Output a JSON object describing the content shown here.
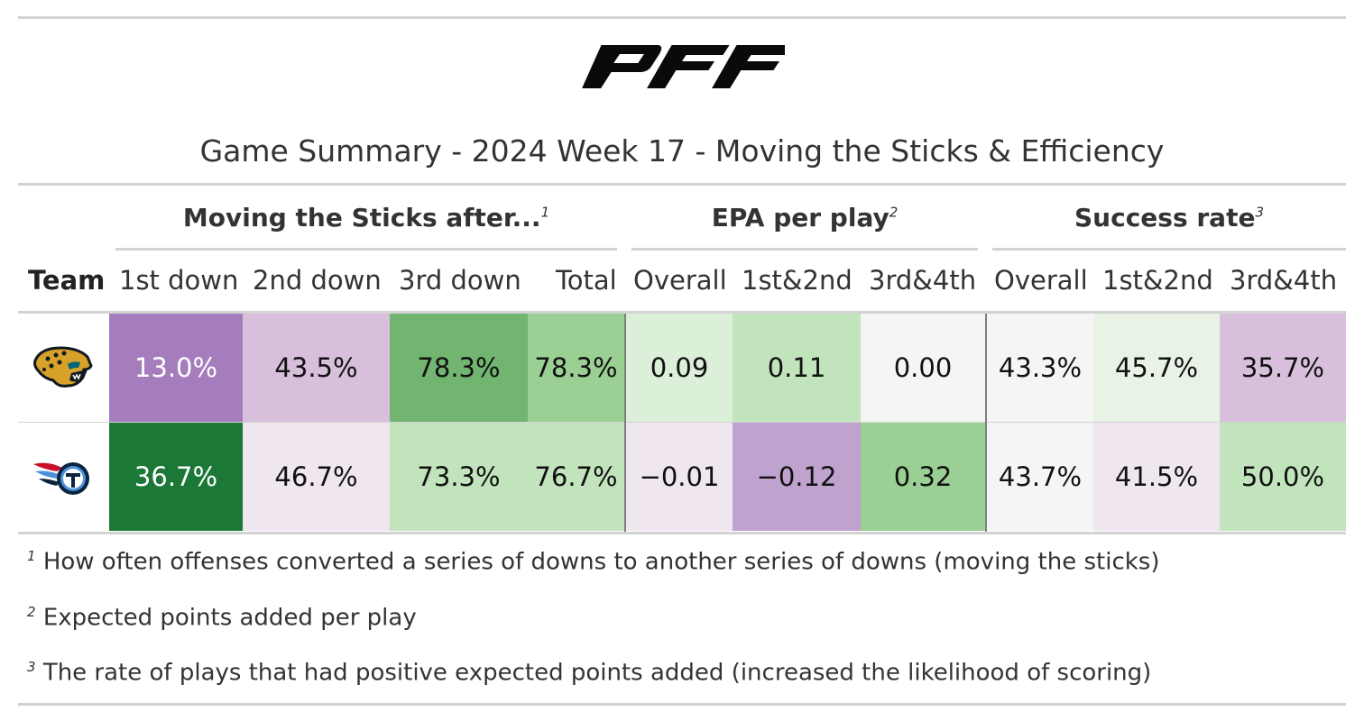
{
  "logo_text": "PFF",
  "title": "Game Summary - 2024 Week 17 - Moving the Sticks & Efficiency",
  "spanners": [
    {
      "label": "Moving the Sticks after...",
      "mark": "1"
    },
    {
      "label": "EPA per play",
      "mark": "2"
    },
    {
      "label": "Success rate",
      "mark": "3"
    }
  ],
  "columns": [
    "Team",
    "1st down",
    "2nd down",
    "3rd down",
    "Total",
    "Overall",
    "1st&2nd",
    "3rd&4th",
    "Overall",
    "1st&2nd",
    "3rd&4th"
  ],
  "rows": [
    {
      "team_icon": "jaguars-logo-icon",
      "cells": [
        {
          "text": "13.0%",
          "bg": "#a57dbd",
          "fg": "light"
        },
        {
          "text": "43.5%",
          "bg": "#d8c0dc",
          "fg": "dark"
        },
        {
          "text": "78.3%",
          "bg": "#71b571",
          "fg": "dark"
        },
        {
          "text": "78.3%",
          "bg": "#9bd094",
          "fg": "dark"
        },
        {
          "text": "0.09",
          "bg": "#dcefd8",
          "fg": "dark"
        },
        {
          "text": "0.11",
          "bg": "#c2e4bc",
          "fg": "dark"
        },
        {
          "text": "0.00",
          "bg": "#f5f5f5",
          "fg": "dark"
        },
        {
          "text": "43.3%",
          "bg": "#f5f5f5",
          "fg": "dark"
        },
        {
          "text": "45.7%",
          "bg": "#e8f3e6",
          "fg": "dark"
        },
        {
          "text": "35.7%",
          "bg": "#d8c0dc",
          "fg": "dark"
        }
      ]
    },
    {
      "team_icon": "titans-logo-icon",
      "cells": [
        {
          "text": "36.7%",
          "bg": "#1b7837",
          "fg": "light"
        },
        {
          "text": "46.7%",
          "bg": "#efe6ef",
          "fg": "dark"
        },
        {
          "text": "73.3%",
          "bg": "#c2e4bc",
          "fg": "dark"
        },
        {
          "text": "76.7%",
          "bg": "#c2e4bc",
          "fg": "dark"
        },
        {
          "text": "−0.01",
          "bg": "#efe6ef",
          "fg": "dark"
        },
        {
          "text": "−0.12",
          "bg": "#c0a2cf",
          "fg": "dark"
        },
        {
          "text": "0.32",
          "bg": "#9bd094",
          "fg": "dark"
        },
        {
          "text": "43.7%",
          "bg": "#f5f5f5",
          "fg": "dark"
        },
        {
          "text": "41.5%",
          "bg": "#efe6ef",
          "fg": "dark"
        },
        {
          "text": "50.0%",
          "bg": "#c2e4bc",
          "fg": "dark"
        }
      ]
    }
  ],
  "footnotes": [
    {
      "mark": "1",
      "text": "How often offenses converted a series of downs to another series of downs (moving the sticks)"
    },
    {
      "mark": "2",
      "text": "Expected points added per play"
    },
    {
      "mark": "3",
      "text": "The rate of plays that had positive expected points added (increased the likelihood of scoring)"
    }
  ],
  "chart_data": {
    "type": "table",
    "title": "Game Summary - 2024 Week 17 - Moving the Sticks & Efficiency",
    "column_groups": [
      {
        "name": "Moving the Sticks after...",
        "columns": [
          "1st down",
          "2nd down",
          "3rd down",
          "Total"
        ]
      },
      {
        "name": "EPA per play",
        "columns": [
          "Overall",
          "1st&2nd",
          "3rd&4th"
        ]
      },
      {
        "name": "Success rate",
        "columns": [
          "Overall",
          "1st&2nd",
          "3rd&4th"
        ]
      }
    ],
    "rows": [
      {
        "team_icon": "jaguars-logo-icon",
        "values": [
          "13.0%",
          "43.5%",
          "78.3%",
          "78.3%",
          0.09,
          0.11,
          0.0,
          "43.3%",
          "45.7%",
          "35.7%"
        ]
      },
      {
        "team_icon": "titans-logo-icon",
        "values": [
          "36.7%",
          "46.7%",
          "73.3%",
          "76.7%",
          -0.01,
          -0.12,
          0.32,
          "43.7%",
          "41.5%",
          "50.0%"
        ]
      }
    ],
    "color_scale": {
      "low": "#762a83",
      "mid": "#f7f7f7",
      "high": "#1b7837"
    }
  }
}
